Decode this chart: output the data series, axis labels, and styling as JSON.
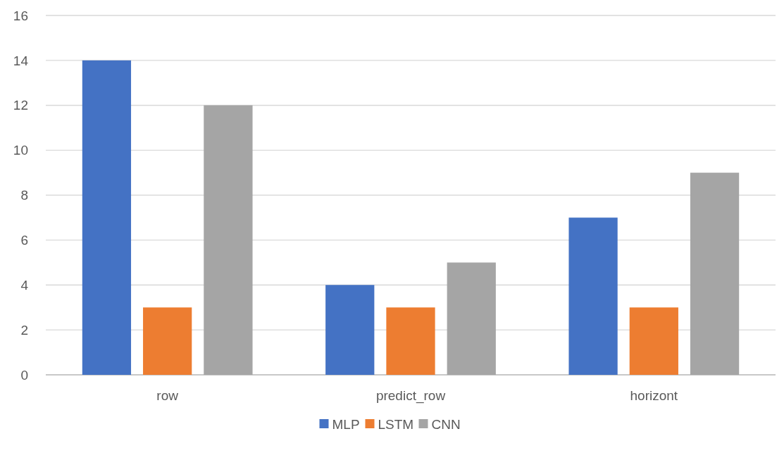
{
  "chart_data": {
    "type": "bar",
    "categories": [
      "row",
      "predict_row",
      "horizont"
    ],
    "series": [
      {
        "name": "MLP",
        "color": "#4472c4",
        "values": [
          14,
          4,
          7
        ]
      },
      {
        "name": "LSTM",
        "color": "#ed7d31",
        "values": [
          3,
          3,
          3
        ]
      },
      {
        "name": "CNN",
        "color": "#a5a5a5",
        "values": [
          12,
          5,
          9
        ]
      }
    ],
    "ylim": [
      0,
      16
    ],
    "yticks": [
      0,
      2,
      4,
      6,
      8,
      10,
      12,
      14,
      16
    ],
    "grid": "y",
    "legend": "bottom"
  }
}
